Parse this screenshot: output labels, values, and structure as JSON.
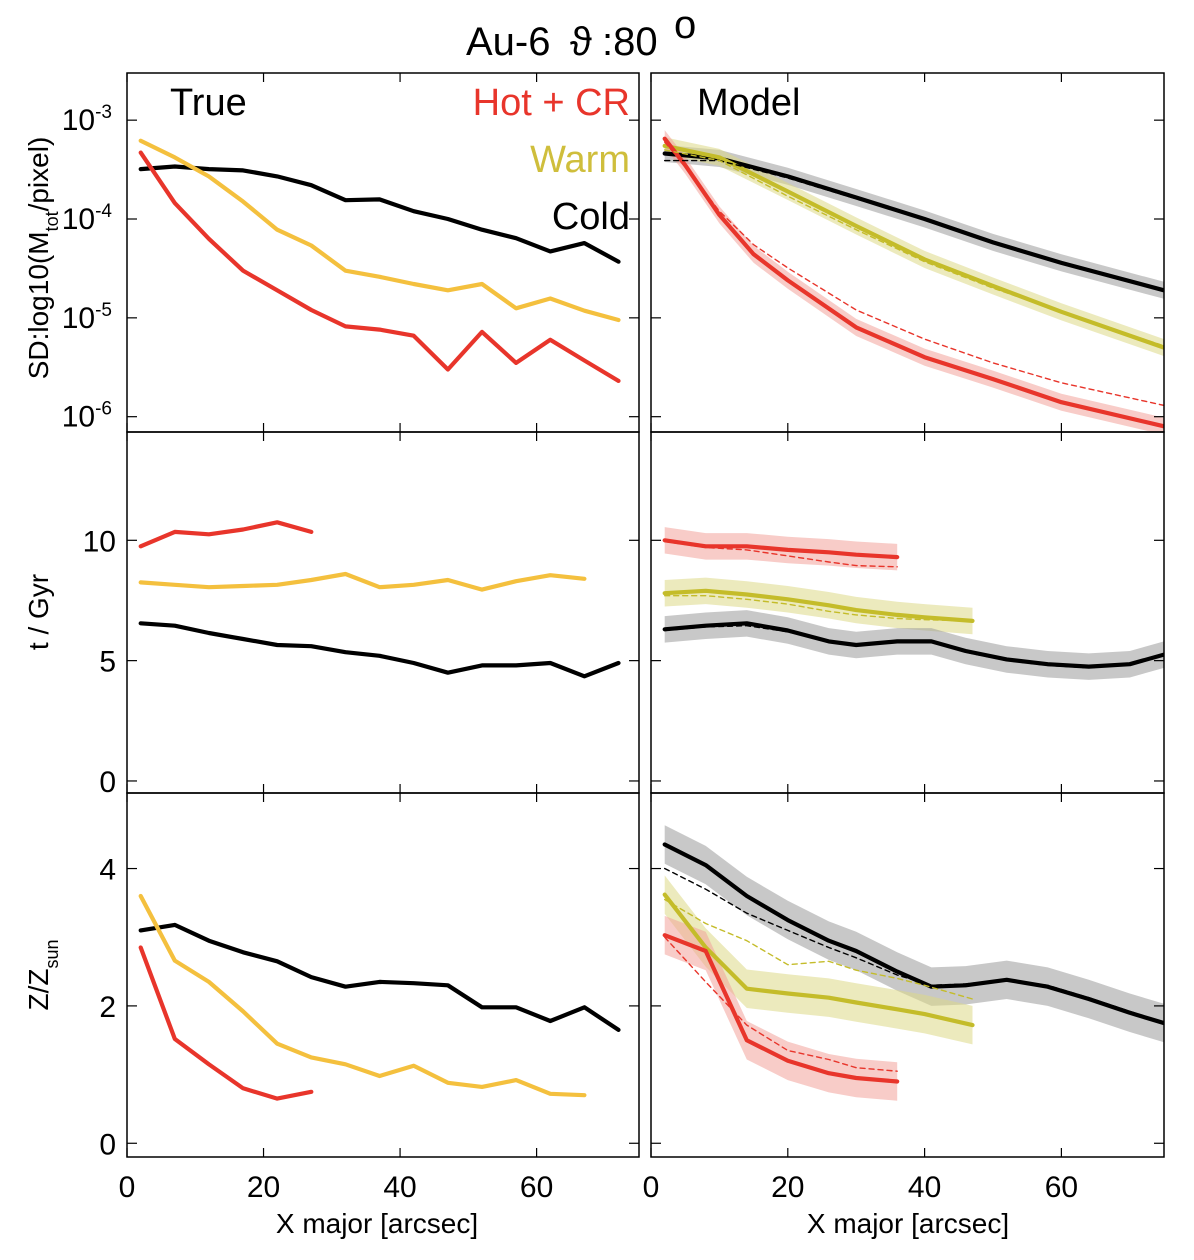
{
  "figure": {
    "title": "Au-6",
    "theta_symbol": "ϑ",
    "theta_value": ":80",
    "theta_unit": "o"
  },
  "colors": {
    "hot": "#e8352b",
    "warm": "#f4c03e",
    "warm_model": "#c4bc2a",
    "cold": "#000000",
    "hot_band": "#f2a29a",
    "warm_band": "#dcd987",
    "cold_band": "#9a9a9a"
  },
  "labels": {
    "true": "True",
    "model": "Model",
    "legend": [
      "Hot + CR",
      "Warm",
      "Cold"
    ],
    "xlabel": "X major [arcsec]",
    "sd_ylabel_pre": "SD:log10(M",
    "sd_ylabel_sub": "tot",
    "sd_ylabel_post": "/pixel)",
    "age_ylabel": "t / Gyr",
    "met_ylabel_pre": "Z/Z",
    "met_ylabel_sub": "sun",
    "x_ticks": [
      "0",
      "20",
      "40",
      "60"
    ],
    "sd_ticks": [
      {
        "base": "10",
        "exp": "-3"
      },
      {
        "base": "10",
        "exp": "-4"
      },
      {
        "base": "10",
        "exp": "-5"
      },
      {
        "base": "10",
        "exp": "-6"
      }
    ],
    "age_ticks": [
      "10",
      "5",
      "0"
    ],
    "met_ticks": [
      "4",
      "2",
      "0"
    ]
  },
  "chart_data": [
    {
      "type": "line",
      "panel": "surface-density-true",
      "title": "True",
      "xlabel": "",
      "ylabel": "SD:log10(Mtot/pixel)",
      "yscale": "log",
      "xlim": [
        0,
        75
      ],
      "ylim": [
        7e-07,
        0.003
      ],
      "series": [
        {
          "name": "Cold",
          "x": [
            2,
            7,
            12,
            17,
            22,
            27,
            32,
            37,
            42,
            47,
            52,
            57,
            62,
            67,
            72
          ],
          "values": [
            0.00032,
            0.00034,
            0.00032,
            0.00031,
            0.00027,
            0.00022,
            0.000155,
            0.000158,
            0.00012,
            0.0001,
            7.8e-05,
            6.4e-05,
            4.7e-05,
            5.7e-05,
            3.7e-05
          ]
        },
        {
          "name": "Warm",
          "x": [
            2,
            7,
            12,
            17,
            22,
            27,
            32,
            37,
            42,
            47,
            52,
            57,
            62,
            67,
            72
          ],
          "values": [
            0.00062,
            0.00042,
            0.00027,
            0.00015,
            7.8e-05,
            5.4e-05,
            3e-05,
            2.6e-05,
            2.2e-05,
            1.9e-05,
            2.2e-05,
            1.25e-05,
            1.57e-05,
            1.18e-05,
            9.5e-06
          ]
        },
        {
          "name": "Hot + CR",
          "x": [
            2,
            7,
            12,
            17,
            22,
            27,
            32,
            37,
            42,
            47,
            52,
            57,
            62,
            67,
            72
          ],
          "values": [
            0.00047,
            0.000145,
            6.3e-05,
            3e-05,
            1.9e-05,
            1.2e-05,
            8.2e-06,
            7.6e-06,
            6.6e-06,
            3e-06,
            7.2e-06,
            3.5e-06,
            6e-06,
            3.7e-06,
            2.3e-06
          ]
        }
      ]
    },
    {
      "type": "line",
      "panel": "surface-density-model",
      "title": "Model",
      "xlabel": "",
      "ylabel": "",
      "yscale": "log",
      "xlim": [
        0,
        75
      ],
      "ylim": [
        7e-07,
        0.003
      ],
      "series": [
        {
          "name": "Cold",
          "x": [
            2,
            10,
            20,
            30,
            40,
            50,
            60,
            75
          ],
          "values": [
            0.00046,
            0.00041,
            0.00027,
            0.000165,
            0.0001,
            5.8e-05,
            3.6e-05,
            1.9e-05
          ]
        },
        {
          "name": "Warm",
          "x": [
            2,
            10,
            20,
            30,
            40,
            50,
            60,
            75
          ],
          "values": [
            0.00055,
            0.00042,
            0.00019,
            8.5e-05,
            3.9e-05,
            2.1e-05,
            1.15e-05,
            5e-06
          ]
        },
        {
          "name": "Hot + CR",
          "x": [
            2,
            5,
            10,
            15,
            20,
            30,
            40,
            50,
            60,
            75
          ],
          "values": [
            0.00065,
            0.00035,
            0.00011,
            4.4e-05,
            2.4e-05,
            8e-06,
            4e-06,
            2.4e-06,
            1.4e-06,
            8e-07
          ]
        },
        {
          "name": "Cold (dashed)",
          "x": [
            2,
            10,
            20,
            30,
            40,
            50,
            60,
            75
          ],
          "values": [
            0.00039,
            0.00039,
            0.00026,
            0.00016,
            0.0001,
            5.9e-05,
            3.6e-05,
            1.9e-05
          ]
        },
        {
          "name": "Warm (dashed)",
          "x": [
            2,
            10,
            20,
            30,
            40,
            50,
            60,
            75
          ],
          "values": [
            0.0005,
            0.00039,
            0.00017,
            7.8e-05,
            3.7e-05,
            2e-05,
            1.15e-05,
            5.2e-06
          ]
        },
        {
          "name": "Hot + CR (dashed)",
          "x": [
            2,
            5,
            10,
            15,
            20,
            30,
            40,
            50,
            60,
            75
          ],
          "values": [
            0.0006,
            0.00034,
            0.00012,
            5.5e-05,
            3.2e-05,
            1.2e-05,
            6.1e-06,
            3.5e-06,
            2.2e-06,
            1.3e-06
          ]
        }
      ]
    },
    {
      "type": "line",
      "panel": "age-true",
      "title": "",
      "xlabel": "",
      "ylabel": "t / Gyr",
      "xlim": [
        0,
        75
      ],
      "ylim": [
        -0.5,
        14.5
      ],
      "series": [
        {
          "name": "Hot + CR",
          "x": [
            2,
            7,
            12,
            17,
            22,
            27
          ],
          "values": [
            9.75,
            10.35,
            10.25,
            10.45,
            10.75,
            10.35
          ]
        },
        {
          "name": "Warm",
          "x": [
            2,
            7,
            12,
            17,
            22,
            27,
            32,
            37,
            42,
            47,
            52,
            57,
            62,
            67
          ],
          "values": [
            8.25,
            8.15,
            8.05,
            8.1,
            8.15,
            8.35,
            8.6,
            8.05,
            8.15,
            8.35,
            7.95,
            8.3,
            8.55,
            8.4
          ]
        },
        {
          "name": "Cold",
          "x": [
            2,
            7,
            12,
            17,
            22,
            27,
            32,
            37,
            42,
            47,
            52,
            57,
            62,
            67,
            72
          ],
          "values": [
            6.55,
            6.45,
            6.15,
            5.9,
            5.65,
            5.6,
            5.35,
            5.2,
            4.9,
            4.5,
            4.8,
            4.8,
            4.9,
            4.35,
            4.9
          ]
        }
      ]
    },
    {
      "type": "line",
      "panel": "age-model",
      "title": "",
      "xlabel": "",
      "ylabel": "",
      "xlim": [
        0,
        75
      ],
      "ylim": [
        -0.5,
        14.5
      ],
      "series": [
        {
          "name": "Hot + CR",
          "x": [
            2,
            8,
            14,
            20,
            26,
            30,
            36
          ],
          "values": [
            10.0,
            9.75,
            9.75,
            9.6,
            9.5,
            9.4,
            9.3
          ]
        },
        {
          "name": "Warm",
          "x": [
            2,
            8,
            14,
            20,
            26,
            30,
            36,
            40,
            47
          ],
          "values": [
            7.8,
            7.9,
            7.75,
            7.55,
            7.3,
            7.1,
            6.9,
            6.8,
            6.65
          ]
        },
        {
          "name": "Cold",
          "x": [
            2,
            8,
            14,
            20,
            26,
            30,
            36,
            41,
            46,
            52,
            58,
            64,
            70,
            75
          ],
          "values": [
            6.3,
            6.45,
            6.55,
            6.25,
            5.8,
            5.65,
            5.8,
            5.8,
            5.4,
            5.05,
            4.85,
            4.75,
            4.85,
            5.25
          ]
        },
        {
          "name": "Hot + CR (dashed)",
          "x": [
            2,
            8,
            14,
            20,
            26,
            30,
            36
          ],
          "values": [
            9.95,
            9.7,
            9.6,
            9.35,
            9.1,
            8.95,
            8.9
          ]
        },
        {
          "name": "Warm (dashed)",
          "x": [
            2,
            8,
            14,
            20,
            26,
            30,
            36,
            40,
            47
          ],
          "values": [
            7.7,
            7.7,
            7.55,
            7.35,
            7.05,
            6.9,
            6.75,
            6.7,
            6.65
          ]
        },
        {
          "name": "Cold (dashed)",
          "x": [
            2,
            8,
            14,
            20,
            26,
            30,
            36,
            41,
            46,
            52,
            58,
            64,
            70,
            75
          ],
          "values": [
            6.25,
            6.4,
            6.45,
            6.2,
            5.8,
            5.65,
            5.8,
            5.8,
            5.35,
            5.0,
            4.8,
            4.7,
            4.85,
            5.2
          ]
        }
      ]
    },
    {
      "type": "line",
      "panel": "metallicity-true",
      "title": "",
      "xlabel": "X major [arcsec]",
      "ylabel": "Z/Zsun",
      "xlim": [
        0,
        75
      ],
      "ylim": [
        -0.2,
        5.1
      ],
      "series": [
        {
          "name": "Cold",
          "x": [
            2,
            7,
            12,
            17,
            22,
            27,
            32,
            37,
            42,
            47,
            52,
            57,
            62,
            67,
            72
          ],
          "values": [
            3.1,
            3.18,
            2.95,
            2.78,
            2.65,
            2.42,
            2.28,
            2.35,
            2.33,
            2.3,
            1.98,
            1.98,
            1.78,
            1.98,
            1.65
          ]
        },
        {
          "name": "Warm",
          "x": [
            2,
            7,
            12,
            17,
            22,
            27,
            32,
            37,
            42,
            47,
            52,
            57,
            62,
            67
          ],
          "values": [
            3.6,
            2.66,
            2.35,
            1.92,
            1.45,
            1.25,
            1.15,
            0.98,
            1.13,
            0.88,
            0.82,
            0.92,
            0.72,
            0.7
          ]
        },
        {
          "name": "Hot + CR",
          "x": [
            2,
            7,
            12,
            17,
            22,
            27
          ],
          "values": [
            2.85,
            1.52,
            1.15,
            0.8,
            0.65,
            0.75
          ]
        }
      ]
    },
    {
      "type": "line",
      "panel": "metallicity-model",
      "title": "",
      "xlabel": "X major [arcsec]",
      "ylabel": "",
      "xlim": [
        0,
        75
      ],
      "ylim": [
        -0.2,
        5.1
      ],
      "series": [
        {
          "name": "Cold",
          "x": [
            2,
            8,
            14,
            20,
            26,
            30,
            36,
            41,
            46,
            52,
            58,
            64,
            70,
            75
          ],
          "values": [
            4.35,
            4.05,
            3.6,
            3.25,
            2.95,
            2.8,
            2.5,
            2.28,
            2.3,
            2.38,
            2.28,
            2.1,
            1.9,
            1.75
          ]
        },
        {
          "name": "Warm",
          "x": [
            2,
            8,
            14,
            20,
            26,
            30,
            36,
            40,
            47
          ],
          "values": [
            3.62,
            2.85,
            2.25,
            2.18,
            2.12,
            2.05,
            1.95,
            1.88,
            1.72
          ]
        },
        {
          "name": "Hot + CR",
          "x": [
            2,
            8,
            14,
            20,
            26,
            30,
            36
          ],
          "values": [
            3.03,
            2.8,
            1.5,
            1.2,
            1.02,
            0.95,
            0.9
          ]
        },
        {
          "name": "Cold (dashed)",
          "x": [
            2,
            8,
            14,
            20,
            26,
            30,
            36,
            41,
            46,
            52,
            58,
            64,
            70,
            75
          ],
          "values": [
            4.0,
            3.7,
            3.35,
            3.1,
            2.85,
            2.7,
            2.45,
            2.3,
            2.32,
            2.38,
            2.3,
            2.12,
            1.92,
            1.76
          ]
        },
        {
          "name": "Warm (dashed)",
          "x": [
            2,
            8,
            14,
            20,
            26,
            30,
            36,
            40,
            47
          ],
          "values": [
            3.55,
            3.2,
            2.95,
            2.6,
            2.65,
            2.52,
            2.4,
            2.3,
            2.1
          ]
        },
        {
          "name": "Hot + CR (dashed)",
          "x": [
            2,
            8,
            14,
            20,
            26,
            30,
            36
          ],
          "values": [
            3.0,
            2.35,
            1.72,
            1.35,
            1.22,
            1.1,
            1.05
          ]
        }
      ]
    }
  ]
}
